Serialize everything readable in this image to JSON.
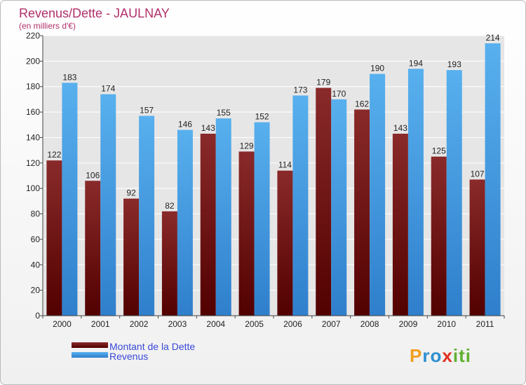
{
  "chart_data": {
    "type": "bar",
    "title": "Revenus/Dette - JAULNAY",
    "subtitle": "(en milliers d'€)",
    "categories": [
      "2000",
      "2001",
      "2002",
      "2003",
      "2004",
      "2005",
      "2006",
      "2007",
      "2008",
      "2009",
      "2010",
      "2011"
    ],
    "series": [
      {
        "name": "Montant de la Dette",
        "values": [
          122,
          106,
          92,
          82,
          143,
          129,
          114,
          179,
          162,
          143,
          125,
          107
        ],
        "color": "#6b1010"
      },
      {
        "name": "Revenus",
        "values": [
          183,
          174,
          157,
          146,
          155,
          152,
          173,
          170,
          190,
          194,
          193,
          214
        ],
        "color": "#3fa0e6"
      }
    ],
    "ylim": [
      0,
      220
    ],
    "yticks": [
      0,
      20,
      40,
      60,
      80,
      100,
      120,
      140,
      160,
      180,
      200,
      220
    ],
    "grid": true,
    "legend_position": "bottom-left"
  },
  "logo": {
    "letters": [
      "P",
      "r",
      "o",
      "x",
      "i",
      "t",
      "i"
    ],
    "colors": [
      "#f0a020",
      "#2f8fd0",
      "#2f8fd0",
      "#e03020",
      "#60b030",
      "#60b030",
      "#60b030"
    ]
  }
}
